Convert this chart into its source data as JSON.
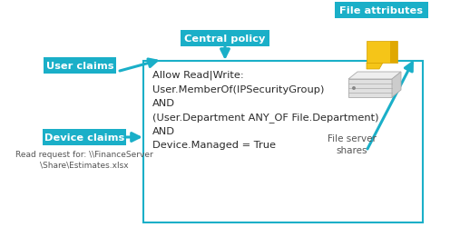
{
  "bg_color": "#ffffff",
  "cyan": "#1AAFC8",
  "box_edge": "#1AAFC8",
  "text_color": "#2a2a2a",
  "label_text_color": "#ffffff",
  "small_text_color": "#555555",
  "labels": {
    "user_claims": "User claims",
    "central_policy": "Central policy",
    "device_claims": "Device claims",
    "file_attributes": "File attributes",
    "file_server": "File server\nshares",
    "read_request": "Read request for: \\\\FinanceServer\n\\Share\\Estimates.xlsx"
  },
  "policy_text": "Allow Read|Write:\nUser.MemberOf(IPSecurityGroup)\nAND\n(User.Department ANY_OF File.Department)\nAND\nDevice.Managed = True",
  "figsize": [
    5.07,
    2.51
  ],
  "dpi": 100
}
